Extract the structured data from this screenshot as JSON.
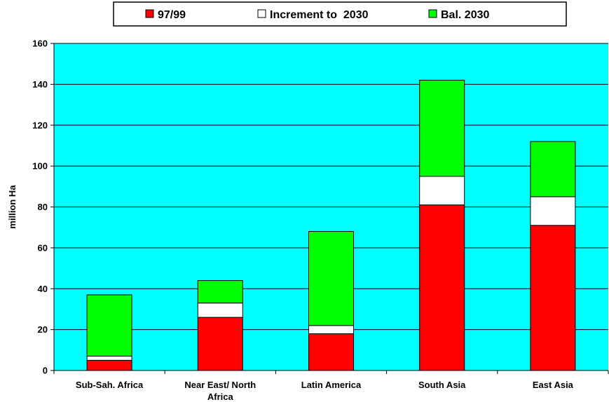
{
  "chart_data": {
    "type": "bar",
    "stacked": true,
    "categories": [
      [
        "Sub-Sah. Africa"
      ],
      [
        "Near East/ North",
        "Africa"
      ],
      [
        "Latin America"
      ],
      [
        "South Asia"
      ],
      [
        "East Asia"
      ]
    ],
    "series": [
      {
        "name": "97/99",
        "color": "#ff0000",
        "values": [
          5,
          26,
          18,
          81,
          71
        ]
      },
      {
        "name": "Increment to  2030",
        "color": "#ffffff",
        "values": [
          2,
          7,
          4,
          14,
          14
        ]
      },
      {
        "name": "Bal. 2030",
        "color": "#00ff00",
        "values": [
          30,
          11,
          46,
          47,
          27
        ]
      }
    ],
    "ylabel": "million Ha",
    "ylim": [
      0,
      160
    ],
    "yticks": [
      0,
      20,
      40,
      60,
      80,
      100,
      120,
      140,
      160
    ],
    "grid": true,
    "plot_background": "#00ffff",
    "legend_position": "top"
  }
}
